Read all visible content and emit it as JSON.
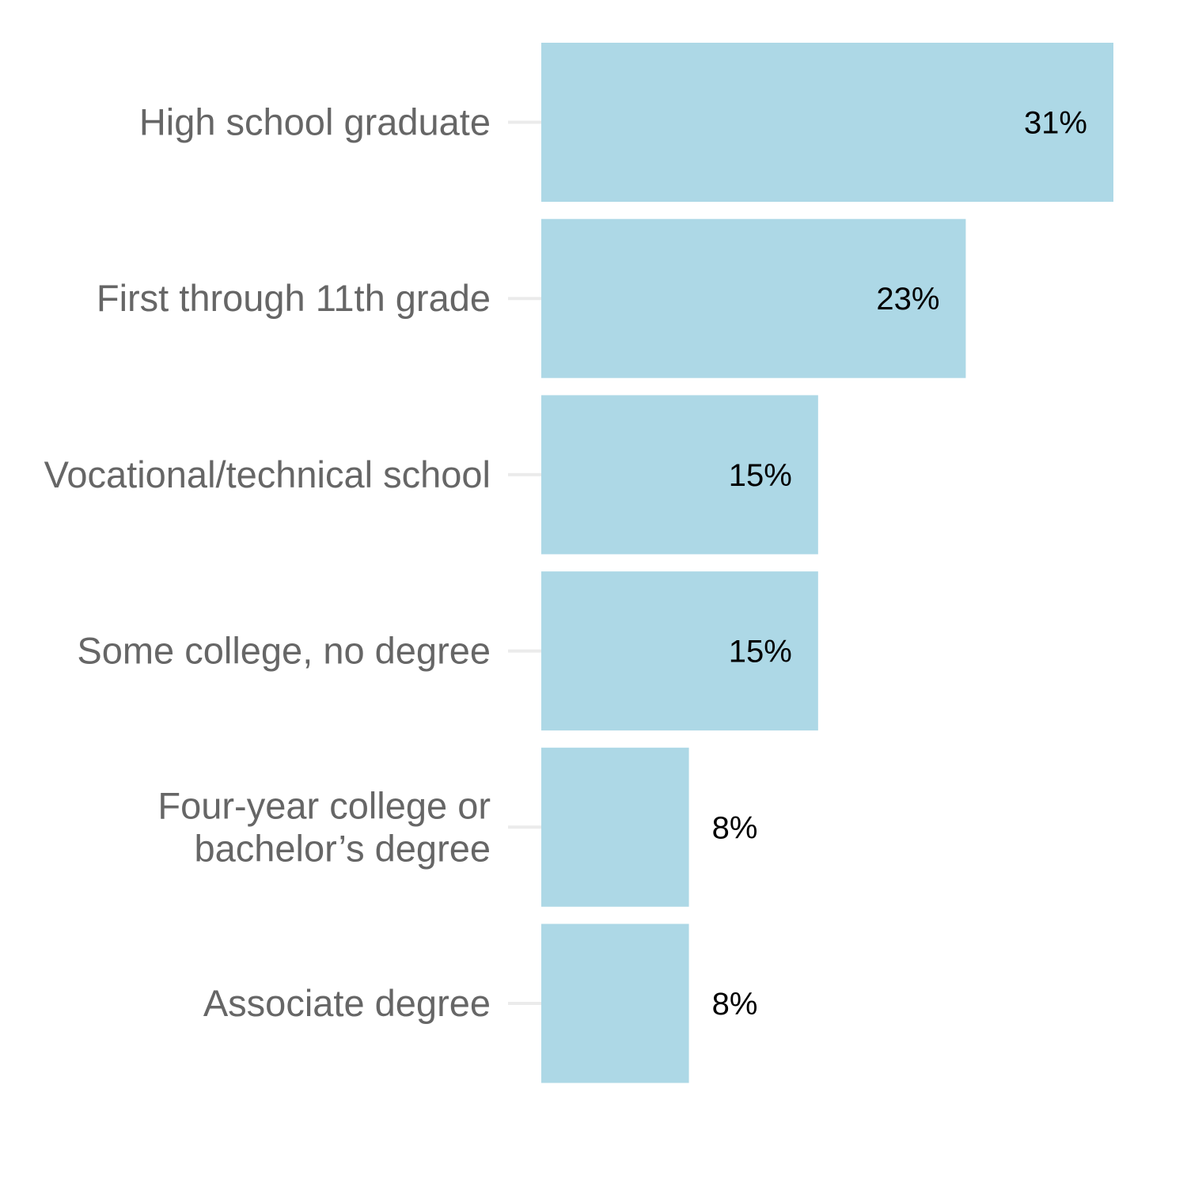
{
  "chart_data": {
    "type": "bar",
    "orientation": "horizontal",
    "categories": [
      [
        "High school graduate"
      ],
      [
        "First through 11th grade"
      ],
      [
        "Vocational/technical school"
      ],
      [
        "Some college, no degree"
      ],
      [
        "Four-year college or",
        "bachelor’s degree"
      ],
      [
        "Associate degree"
      ]
    ],
    "values": [
      31,
      23,
      15,
      15,
      8,
      8
    ],
    "value_labels": [
      "31%",
      "23%",
      "15%",
      "15%",
      "8%",
      "8%"
    ],
    "xlim": [
      0,
      31
    ],
    "grid": false,
    "legend": "none",
    "colors": {
      "bar": "#add8e6",
      "category_text": "#666666",
      "value_text": "#000000",
      "tick": "#ebebeb"
    }
  }
}
